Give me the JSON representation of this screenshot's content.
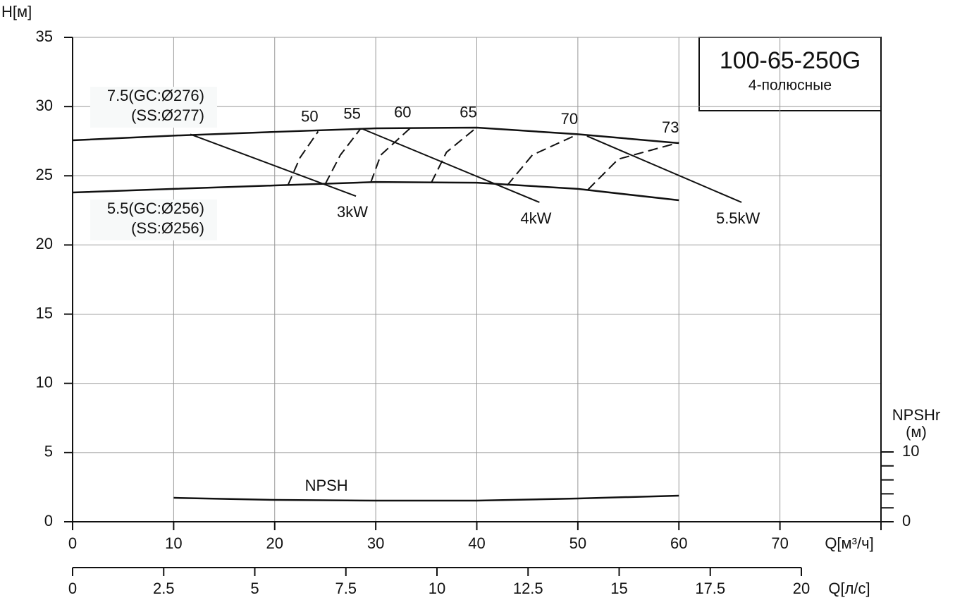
{
  "chart_data": {
    "type": "line",
    "title": "100-65-250G",
    "subtitle": "4-полюсные",
    "y_label": "H[м]",
    "x_label": "Q[м³/ч]",
    "x2_label": "Q[л/с]",
    "y2_label": [
      "NPSHr",
      "(м)"
    ],
    "xlim": [
      0,
      80
    ],
    "xticks": [
      0,
      10,
      20,
      30,
      40,
      50,
      60,
      70
    ],
    "x2lim": [
      0,
      20
    ],
    "x2ticks": [
      0,
      2.5,
      5,
      7.5,
      10,
      12.5,
      15,
      17.5,
      20
    ],
    "ylim": [
      0,
      35
    ],
    "yticks": [
      0,
      5,
      10,
      15,
      20,
      25,
      30,
      35
    ],
    "y2lim": [
      0,
      10
    ],
    "y2ticks": [
      0,
      10
    ],
    "y2minorticks": [
      2,
      4,
      6,
      8
    ],
    "grid": true,
    "series": [
      {
        "name": [
          "7.5(GC:Ø276)",
          "(SS:Ø277)"
        ],
        "color": "#111111",
        "x": [
          0,
          10,
          20,
          30,
          40,
          50,
          60
        ],
        "values": [
          27.56,
          27.9,
          28.17,
          28.43,
          28.48,
          28.0,
          27.36
        ]
      },
      {
        "name": [
          "5.5(GC:Ø256)",
          "(SS:Ø256)"
        ],
        "color": "#111111",
        "x": [
          0,
          10,
          20,
          30,
          40,
          50,
          60
        ],
        "values": [
          23.79,
          24.05,
          24.3,
          24.55,
          24.5,
          24.05,
          23.23
        ]
      },
      {
        "name": "NPSH",
        "color": "#111111",
        "axis": "y2",
        "x": [
          10,
          20,
          30,
          40,
          50,
          60
        ],
        "values": [
          3.43,
          3.13,
          3.03,
          3.03,
          3.33,
          3.74
        ]
      }
    ],
    "efficiency": [
      {
        "name": "50",
        "x": [
          21.3,
          22.5,
          24.3
        ],
        "values": [
          24.3,
          26.3,
          28.2
        ]
      },
      {
        "name": "55",
        "x": [
          25,
          26.5,
          28.5
        ],
        "values": [
          24.4,
          26.5,
          28.4
        ]
      },
      {
        "name": "60",
        "x": [
          29.5,
          30.5,
          33.5
        ],
        "values": [
          24.5,
          26.5,
          28.5
        ]
      },
      {
        "name": "65",
        "x": [
          35.5,
          37,
          40
        ],
        "values": [
          24.5,
          26.7,
          28.5
        ]
      },
      {
        "name": "70",
        "x": [
          43,
          45.5,
          50
        ],
        "values": [
          24.3,
          26.5,
          28.0
        ]
      },
      {
        "name": "73",
        "x": [
          51,
          54,
          60
        ],
        "values": [
          24.0,
          26.2,
          27.4
        ]
      }
    ],
    "power": [
      {
        "name": "3kW",
        "x": [
          11.65,
          28.04
        ],
        "values": [
          28.0,
          23.53
        ]
      },
      {
        "name": "4kW",
        "x": [
          28.73,
          46.2
        ],
        "values": [
          28.37,
          23.08
        ]
      },
      {
        "name": "5.5kW",
        "x": [
          50.9,
          66.2
        ],
        "values": [
          27.87,
          23.08
        ]
      }
    ]
  }
}
